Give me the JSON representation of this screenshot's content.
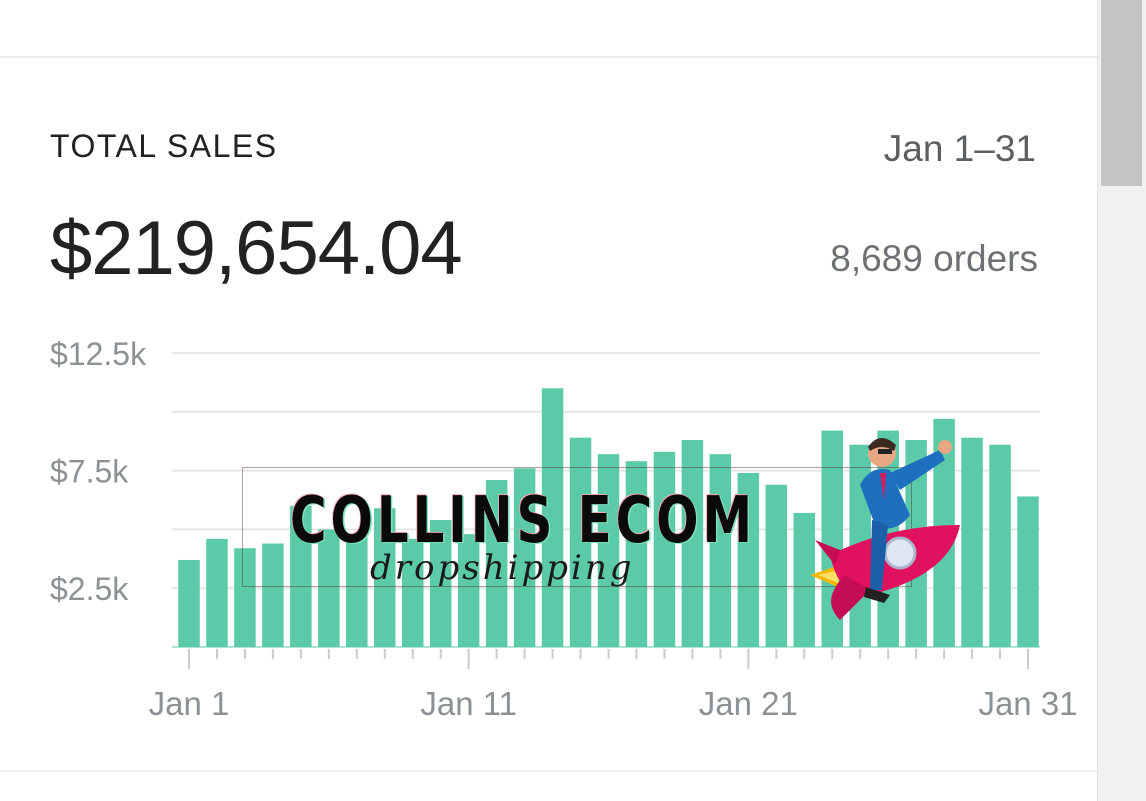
{
  "card": {
    "title": "TOTAL SALES",
    "date_range": "Jan 1–31",
    "total": "$219,654.04",
    "orders": "8,689 orders"
  },
  "watermark": {
    "title": "COLLINS ECOM",
    "subtitle": "dropshipping"
  },
  "colors": {
    "bar": "#5bcaa8",
    "grid": "#e6e6e6",
    "axis_text": "#8c9196",
    "tick": "#c9cccf"
  },
  "chart_data": {
    "type": "bar",
    "title": "TOTAL SALES",
    "xlabel": "",
    "ylabel": "",
    "categories": [
      "Jan 1",
      "Jan 2",
      "Jan 3",
      "Jan 4",
      "Jan 5",
      "Jan 6",
      "Jan 7",
      "Jan 8",
      "Jan 9",
      "Jan 10",
      "Jan 11",
      "Jan 12",
      "Jan 13",
      "Jan 14",
      "Jan 15",
      "Jan 16",
      "Jan 17",
      "Jan 18",
      "Jan 19",
      "Jan 20",
      "Jan 21",
      "Jan 22",
      "Jan 23",
      "Jan 24",
      "Jan 25",
      "Jan 26",
      "Jan 27",
      "Jan 28",
      "Jan 29",
      "Jan 30",
      "Jan 31"
    ],
    "values": [
      3700,
      4600,
      4200,
      4400,
      6000,
      5000,
      4700,
      5900,
      4600,
      5400,
      4800,
      7100,
      7600,
      11000,
      8900,
      8200,
      7900,
      8300,
      8800,
      8200,
      7400,
      6900,
      5700,
      9200,
      8600,
      9200,
      8800,
      9700,
      8900,
      8600,
      6400
    ],
    "y_ticks": [
      {
        "value": 2500,
        "label": "$2.5k"
      },
      {
        "value": 7500,
        "label": "$7.5k"
      },
      {
        "value": 12500,
        "label": "$12.5k"
      }
    ],
    "gridlines": [
      0,
      2500,
      5000,
      7500,
      10000,
      12500
    ],
    "x_tick_labels": [
      {
        "index": 0,
        "label": "Jan 1"
      },
      {
        "index": 10,
        "label": "Jan 11"
      },
      {
        "index": 20,
        "label": "Jan 21"
      },
      {
        "index": 30,
        "label": "Jan 31"
      }
    ],
    "ylim": [
      0,
      12500
    ],
    "grid": true,
    "legend": "none"
  }
}
